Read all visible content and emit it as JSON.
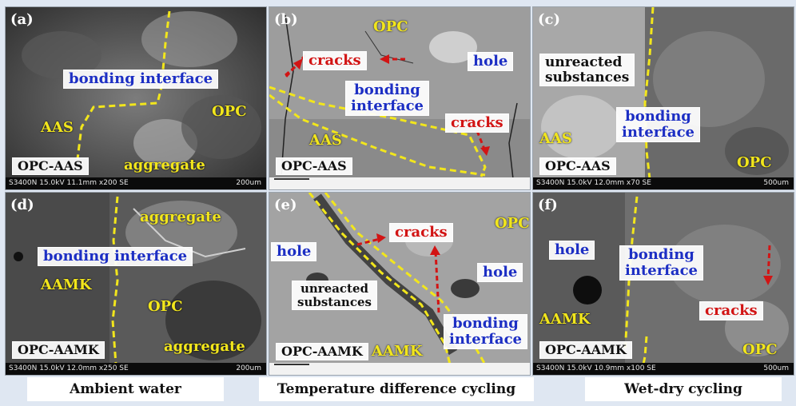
{
  "panels": {
    "a": {
      "letter": "(a)",
      "interface": "bonding interface",
      "aas": "AAS",
      "opc": "OPC",
      "aggregate": "aggregate",
      "sample": "OPC-AAS",
      "info": "S3400N 15.0kV 11.1mm x200 SE",
      "scale": "200um"
    },
    "b": {
      "letter": "(b)",
      "opc": "OPC",
      "cracks1": "cracks",
      "hole": "hole",
      "interface_l1": "bonding",
      "interface_l2": "interface",
      "cracks2": "cracks",
      "aas": "AAS",
      "sample": "OPC-AAS"
    },
    "c": {
      "letter": "(c)",
      "unreacted_l1": "unreacted",
      "unreacted_l2": "substances",
      "interface_l1": "bonding",
      "interface_l2": "interface",
      "aas": "AAS",
      "opc": "OPC",
      "sample": "OPC-AAS",
      "info": "S3400N 15.0kV 12.0mm x70 SE",
      "scale": "500um"
    },
    "d": {
      "letter": "(d)",
      "aggregate1": "aggregate",
      "interface": "bonding interface",
      "aamk": "AAMK",
      "opc": "OPC",
      "aggregate2": "aggregate",
      "sample": "OPC-AAMK",
      "info": "S3400N 15.0kV 12.0mm x250 SE",
      "scale": "200um"
    },
    "e": {
      "letter": "(e)",
      "cracks": "cracks",
      "opc": "OPC",
      "hole1": "hole",
      "hole2": "hole",
      "unreacted_l1": "unreacted",
      "unreacted_l2": "substances",
      "interface_l1": "bonding",
      "interface_l2": "interface",
      "aamk": "AAMK",
      "sample": "OPC-AAMK"
    },
    "f": {
      "letter": "(f)",
      "hole": "hole",
      "interface_l1": "bonding",
      "interface_l2": "interface",
      "cracks": "cracks",
      "aamk": "AAMK",
      "opc": "OPC",
      "sample": "OPC-AAMK",
      "info": "S3400N 15.0kV 10.9mm x100 SE",
      "scale": "500um"
    }
  },
  "captions": {
    "ambient": "Ambient water",
    "temperature": "Temperature difference cycling",
    "wetdry": "Wet-dry cycling"
  },
  "colors": {
    "label_blue": "#1d2fc4",
    "label_red": "#d21414",
    "label_yellow": "#f2e61c"
  }
}
